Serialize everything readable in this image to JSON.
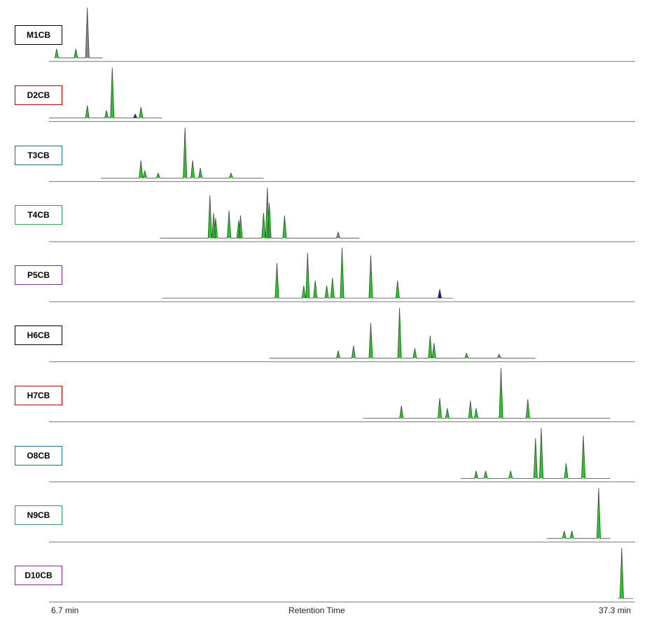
{
  "chart_data": {
    "type": "line",
    "title": "",
    "xlabel": "Retention Time",
    "x_start_label": "6.7 min",
    "x_end_label": "37.3 min",
    "xlim": [
      6.7,
      37.3
    ],
    "grid": false,
    "peak_colors": {
      "major": "#22cc22",
      "minor": "#1a1a8c",
      "unassigned": "#888888"
    },
    "series": [
      {
        "name": "M1CB",
        "box_color": "#000000",
        "trace": [
          7.0,
          9.5
        ],
        "peaks": [
          [
            7.1,
            0.18,
            "g"
          ],
          [
            8.1,
            0.18,
            "g"
          ],
          [
            8.7,
            1.0,
            "u"
          ]
        ]
      },
      {
        "name": "D2CB",
        "box_color": "#c00000",
        "trace": [
          6.7,
          12.6
        ],
        "peaks": [
          [
            8.7,
            0.25,
            "g"
          ],
          [
            9.7,
            0.15,
            "g"
          ],
          [
            10.0,
            1.0,
            "g"
          ],
          [
            11.2,
            0.08,
            "b"
          ],
          [
            11.5,
            0.22,
            "g"
          ]
        ]
      },
      {
        "name": "T3CB",
        "box_color": "#1f6f8b",
        "trace": [
          9.4,
          17.9
        ],
        "peaks": [
          [
            11.5,
            0.35,
            "g"
          ],
          [
            11.7,
            0.15,
            "g"
          ],
          [
            12.4,
            0.1,
            "g"
          ],
          [
            13.8,
            1.0,
            "g"
          ],
          [
            14.2,
            0.35,
            "g"
          ],
          [
            14.6,
            0.2,
            "g"
          ],
          [
            16.2,
            0.1,
            "g"
          ]
        ]
      },
      {
        "name": "T4CB",
        "box_color": "#2e9e5b",
        "trace": [
          12.5,
          22.9
        ],
        "peaks": [
          [
            15.1,
            0.85,
            "g"
          ],
          [
            15.3,
            0.5,
            "g"
          ],
          [
            15.4,
            0.4,
            "g"
          ],
          [
            16.1,
            0.55,
            "g"
          ],
          [
            16.6,
            0.35,
            "g"
          ],
          [
            16.7,
            0.45,
            "g"
          ],
          [
            17.9,
            0.5,
            "g"
          ],
          [
            18.1,
            1.0,
            "g"
          ],
          [
            18.2,
            0.7,
            "g"
          ],
          [
            19.0,
            0.45,
            "g"
          ],
          [
            21.8,
            0.12,
            "u"
          ]
        ]
      },
      {
        "name": "P5CB",
        "box_color": "#7030a0",
        "trace": [
          12.6,
          27.8
        ],
        "peaks": [
          [
            18.6,
            0.7,
            "g"
          ],
          [
            20.0,
            0.25,
            "g"
          ],
          [
            20.2,
            0.9,
            "g"
          ],
          [
            20.6,
            0.35,
            "g"
          ],
          [
            21.2,
            0.25,
            "g"
          ],
          [
            21.5,
            0.4,
            "g"
          ],
          [
            22.0,
            1.0,
            "g"
          ],
          [
            23.5,
            0.85,
            "g"
          ],
          [
            24.9,
            0.35,
            "g"
          ],
          [
            27.1,
            0.18,
            "b"
          ]
        ]
      },
      {
        "name": "H6CB",
        "box_color": "#000000",
        "trace": [
          18.2,
          32.1
        ],
        "peaks": [
          [
            21.8,
            0.15,
            "g"
          ],
          [
            22.6,
            0.25,
            "g"
          ],
          [
            23.5,
            0.7,
            "g"
          ],
          [
            25.0,
            1.0,
            "g"
          ],
          [
            25.8,
            0.2,
            "g"
          ],
          [
            26.6,
            0.45,
            "g"
          ],
          [
            26.8,
            0.3,
            "g"
          ],
          [
            28.5,
            0.1,
            "g"
          ],
          [
            30.2,
            0.08,
            "u"
          ]
        ]
      },
      {
        "name": "H7CB",
        "box_color": "#c00000",
        "trace": [
          23.1,
          36.0
        ],
        "peaks": [
          [
            25.1,
            0.25,
            "g"
          ],
          [
            27.1,
            0.4,
            "g"
          ],
          [
            27.5,
            0.2,
            "g"
          ],
          [
            28.7,
            0.35,
            "g"
          ],
          [
            29.0,
            0.2,
            "g"
          ],
          [
            30.3,
            1.0,
            "g"
          ],
          [
            31.7,
            0.38,
            "g"
          ]
        ]
      },
      {
        "name": "O8CB",
        "box_color": "#1f6f8b",
        "trace": [
          28.2,
          36.0
        ],
        "peaks": [
          [
            29.0,
            0.15,
            "g"
          ],
          [
            29.5,
            0.15,
            "g"
          ],
          [
            30.8,
            0.15,
            "g"
          ],
          [
            32.1,
            0.8,
            "g"
          ],
          [
            32.4,
            1.0,
            "g"
          ],
          [
            33.7,
            0.3,
            "g"
          ],
          [
            34.6,
            0.85,
            "g"
          ]
        ]
      },
      {
        "name": "N9CB",
        "box_color": "#2e9e5b",
        "trace": [
          32.7,
          36.0
        ],
        "peaks": [
          [
            33.6,
            0.15,
            "g"
          ],
          [
            34.0,
            0.15,
            "g"
          ],
          [
            35.4,
            1.0,
            "g"
          ]
        ]
      },
      {
        "name": "D10CB",
        "box_color": "#7030a0",
        "trace": [
          36.4,
          37.2
        ],
        "peaks": [
          [
            36.6,
            1.0,
            "g"
          ]
        ]
      }
    ]
  }
}
